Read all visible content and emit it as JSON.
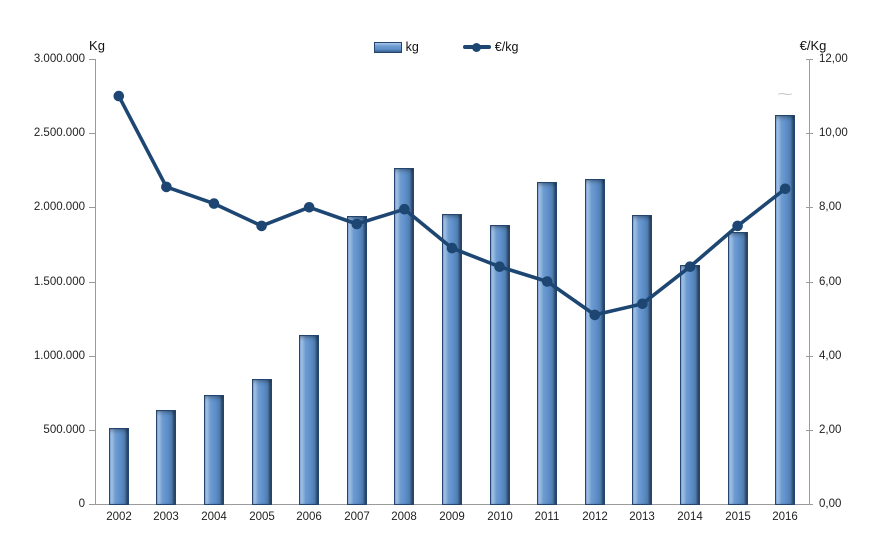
{
  "chart_data": {
    "type": "combo-bar-line",
    "title": "",
    "categories": [
      "2002",
      "2003",
      "2004",
      "2005",
      "2006",
      "2007",
      "2008",
      "2009",
      "2010",
      "2011",
      "2012",
      "2013",
      "2014",
      "2015",
      "2016"
    ],
    "series": [
      {
        "name": "kg",
        "type": "bar",
        "axis": "left",
        "values": [
          515000,
          635000,
          735000,
          840000,
          1140000,
          1940000,
          2265000,
          1955000,
          1880000,
          2170000,
          2190000,
          1950000,
          1610000,
          1835000,
          2625000
        ]
      },
      {
        "name": "€/kg",
        "type": "line",
        "axis": "right",
        "values": [
          11.0,
          8.55,
          8.1,
          7.5,
          8.0,
          7.55,
          7.95,
          6.9,
          6.4,
          6.0,
          5.1,
          5.4,
          6.4,
          7.5,
          8.5
        ]
      }
    ],
    "left_axis": {
      "title": "Kg",
      "min": 0,
      "max": 3000000,
      "tick_step": 500000,
      "tick_labels": [
        "0",
        "500.000",
        "1.000.000",
        "1.500.000",
        "2.000.000",
        "2.500.000",
        "3.000.000"
      ]
    },
    "right_axis": {
      "title": "€/Kg",
      "min": 0,
      "max": 12,
      "tick_step": 2,
      "tick_labels": [
        "0,00",
        "2,00",
        "4,00",
        "6,00",
        "8,00",
        "10,00",
        "12,00"
      ]
    },
    "legend": {
      "position": "top-center",
      "entries": [
        {
          "label": "kg",
          "swatch": "bar"
        },
        {
          "label": "€/kg",
          "swatch": "line-with-marker"
        }
      ]
    },
    "grid": false
  },
  "colors": {
    "bar_fill": "#5b8cc8",
    "bar_border": "#24456e",
    "line": "#1d4673",
    "marker": "#1d4673",
    "axis_line": "#9b9b9b",
    "text": "#1f1f1f"
  },
  "decoration": {
    "squiggle_above_last_bar": "~"
  }
}
